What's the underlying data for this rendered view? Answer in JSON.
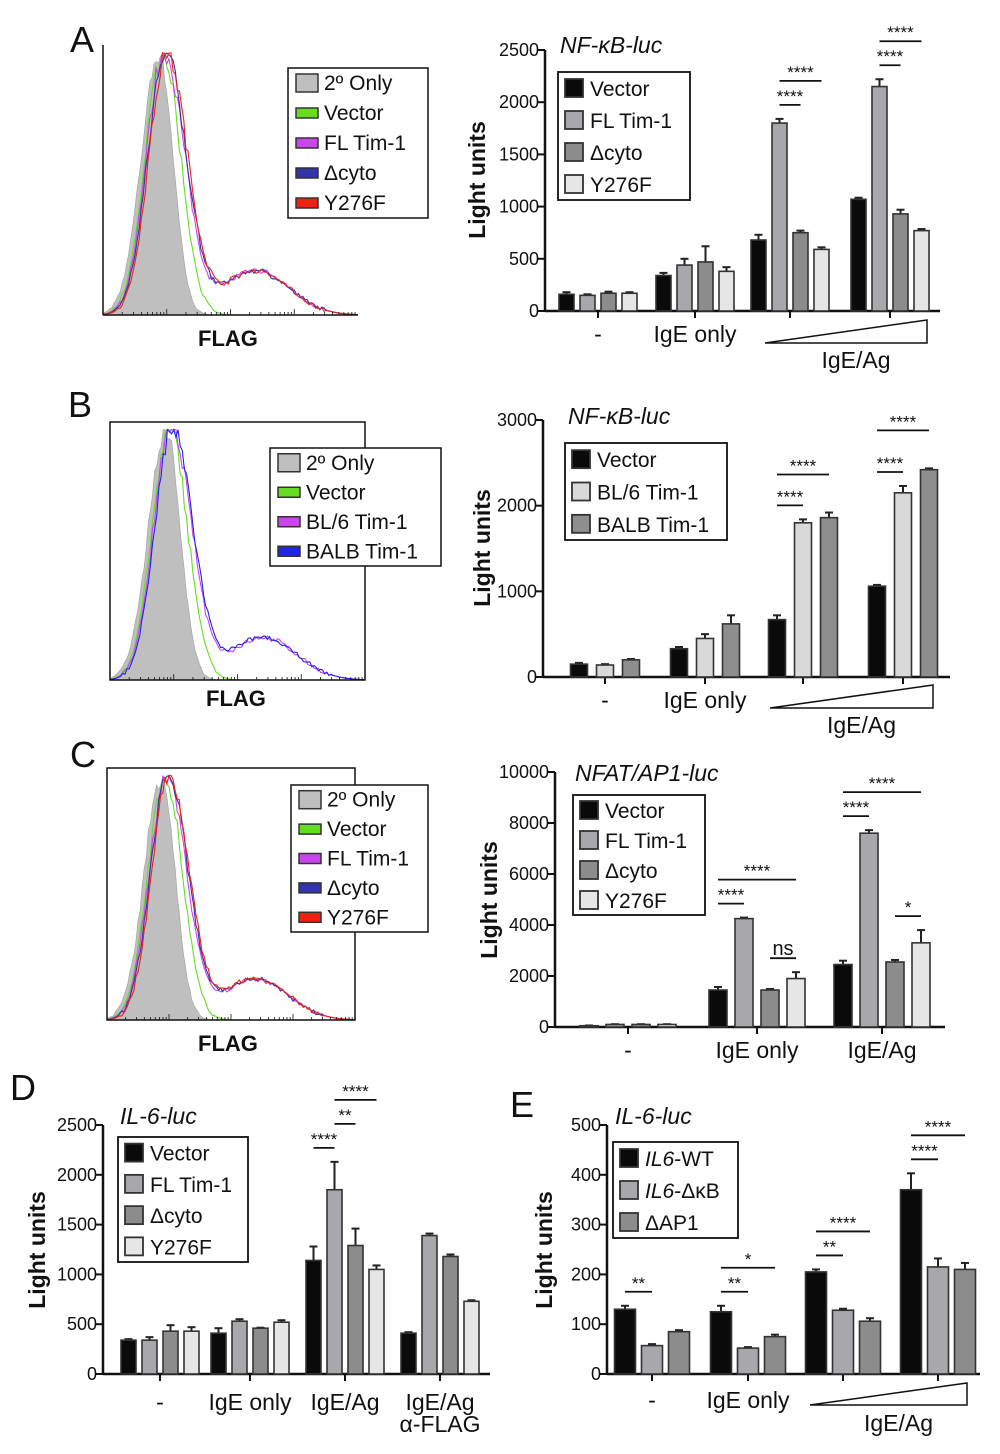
{
  "panels": [
    "A",
    "B",
    "C",
    "D",
    "E"
  ],
  "chart_data": [
    {
      "id": "A-hist",
      "type": "histogram",
      "xlabel": "FLAG",
      "x_scale": "log",
      "legend": [
        {
          "name": "2º Only",
          "color": "#bfbfbf"
        },
        {
          "name": "Vector",
          "color": "#66dd22"
        },
        {
          "name": "FL Tim-1",
          "color": "#cc44ee"
        },
        {
          "name": "Δcyto",
          "color": "#3333aa"
        },
        {
          "name": "Y276F",
          "color": "#ee2211"
        }
      ]
    },
    {
      "id": "A-bar",
      "type": "bar",
      "title": "NF-κB-luc",
      "ylabel": "Light units",
      "ylim": [
        0,
        2500
      ],
      "yticks": [
        0,
        500,
        1000,
        1500,
        2000,
        2500
      ],
      "categories": [
        "-",
        "IgE only",
        "",
        ""
      ],
      "ramp_label": "IgE/Ag",
      "ramp_groups": [
        2,
        3
      ],
      "series": [
        {
          "name": "Vector",
          "color": "#0a0a0a",
          "values": [
            160,
            340,
            680,
            1070
          ],
          "errors": [
            20,
            25,
            50,
            15
          ]
        },
        {
          "name": "FL Tim-1",
          "color": "#a8a8ac",
          "values": [
            150,
            440,
            1800,
            2150
          ],
          "errors": [
            10,
            60,
            40,
            70
          ]
        },
        {
          "name": "Δcyto",
          "color": "#8c8c8c",
          "values": [
            170,
            470,
            750,
            930
          ],
          "errors": [
            15,
            150,
            20,
            40
          ]
        },
        {
          "name": "Y276F",
          "color": "#e6e6e6",
          "values": [
            170,
            380,
            590,
            770
          ],
          "errors": [
            10,
            40,
            20,
            15
          ]
        }
      ],
      "significance": [
        {
          "group": 2,
          "from": 1,
          "to": 2,
          "label": "****",
          "level": 0
        },
        {
          "group": 2,
          "from": 1,
          "to": 3,
          "label": "****",
          "level": 1
        },
        {
          "group": 3,
          "from": 1,
          "to": 2,
          "label": "****",
          "level": 0
        },
        {
          "group": 3,
          "from": 1,
          "to": 3,
          "label": "****",
          "level": 1
        }
      ]
    },
    {
      "id": "B-hist",
      "type": "histogram",
      "xlabel": "FLAG",
      "x_scale": "log",
      "legend": [
        {
          "name": "2º Only",
          "color": "#bfbfbf"
        },
        {
          "name": "Vector",
          "color": "#66dd22"
        },
        {
          "name": "BL/6 Tim-1",
          "color": "#cc44ee"
        },
        {
          "name": "BALB Tim-1",
          "color": "#2222ee"
        }
      ]
    },
    {
      "id": "B-bar",
      "type": "bar",
      "title": "NF-κB-luc",
      "ylabel": "Light units",
      "ylim": [
        0,
        3000
      ],
      "yticks": [
        0,
        1000,
        2000,
        3000
      ],
      "categories": [
        "-",
        "IgE only",
        "",
        ""
      ],
      "ramp_label": "IgE/Ag",
      "ramp_groups": [
        2,
        3
      ],
      "series": [
        {
          "name": "Vector",
          "color": "#0a0a0a",
          "values": [
            150,
            330,
            670,
            1060
          ],
          "errors": [
            15,
            20,
            50,
            15
          ]
        },
        {
          "name": "BL/6 Tim-1",
          "color": "#d9d9d9",
          "values": [
            140,
            450,
            1800,
            2150
          ],
          "errors": [
            10,
            50,
            40,
            80
          ]
        },
        {
          "name": "BALB Tim-1",
          "color": "#8e8e8e",
          "values": [
            200,
            620,
            1860,
            2420
          ],
          "errors": [
            10,
            100,
            60,
            15
          ]
        }
      ],
      "significance": [
        {
          "group": 2,
          "from": 0,
          "to": 1,
          "label": "****",
          "level": 0
        },
        {
          "group": 2,
          "from": 0,
          "to": 2,
          "label": "****",
          "level": 1
        },
        {
          "group": 3,
          "from": 0,
          "to": 1,
          "label": "****",
          "level": 0
        },
        {
          "group": 3,
          "from": 0,
          "to": 2,
          "label": "****",
          "level": 1
        }
      ]
    },
    {
      "id": "C-hist",
      "type": "histogram",
      "xlabel": "FLAG",
      "x_scale": "log",
      "legend": [
        {
          "name": "2º Only",
          "color": "#bfbfbf"
        },
        {
          "name": "Vector",
          "color": "#66dd22"
        },
        {
          "name": "FL Tim-1",
          "color": "#cc44ee"
        },
        {
          "name": "Δcyto",
          "color": "#3333aa"
        },
        {
          "name": "Y276F",
          "color": "#ee2211"
        }
      ]
    },
    {
      "id": "C-bar",
      "type": "bar",
      "title": "NFAT/AP1-luc",
      "ylabel": "Light units",
      "ylim": [
        0,
        10000
      ],
      "yticks": [
        0,
        2000,
        4000,
        6000,
        8000,
        10000
      ],
      "categories": [
        "-",
        "IgE only",
        "IgE/Ag"
      ],
      "series": [
        {
          "name": "Vector",
          "color": "#0a0a0a",
          "values": [
            50,
            1450,
            2450
          ],
          "errors": [
            10,
            120,
            150
          ]
        },
        {
          "name": "FL Tim-1",
          "color": "#a8a8ac",
          "values": [
            100,
            4250,
            7600
          ],
          "errors": [
            10,
            40,
            120
          ]
        },
        {
          "name": "Δcyto",
          "color": "#8c8c8c",
          "values": [
            100,
            1450,
            2550
          ],
          "errors": [
            10,
            40,
            80
          ]
        },
        {
          "name": "Y276F",
          "color": "#e6e6e6",
          "values": [
            100,
            1900,
            3300
          ],
          "errors": [
            10,
            250,
            500
          ]
        }
      ],
      "significance": [
        {
          "group": 1,
          "from": 0,
          "to": 1,
          "label": "****",
          "level": 0
        },
        {
          "group": 1,
          "from": 0,
          "to": 3,
          "label": "****",
          "level": 1
        },
        {
          "group": 1,
          "from": 2,
          "to": 3,
          "label": "ns",
          "level": 0
        },
        {
          "group": 2,
          "from": 0,
          "to": 1,
          "label": "****",
          "level": 0
        },
        {
          "group": 2,
          "from": 0,
          "to": 3,
          "label": "****",
          "level": 1
        },
        {
          "group": 2,
          "from": 2,
          "to": 3,
          "label": "*",
          "level": 0
        }
      ]
    },
    {
      "id": "D-bar",
      "type": "bar",
      "title": "IL-6-luc",
      "ylabel": "Light units",
      "ylim": [
        0,
        2500
      ],
      "yticks": [
        0,
        500,
        1000,
        1500,
        2000,
        2500
      ],
      "categories": [
        "-",
        "IgE only",
        "IgE/Ag",
        "IgE/Ag|α-FLAG"
      ],
      "series": [
        {
          "name": "Vector",
          "color": "#0a0a0a",
          "values": [
            340,
            410,
            1140,
            410
          ],
          "errors": [
            10,
            50,
            140,
            10
          ]
        },
        {
          "name": "FL Tim-1",
          "color": "#a8a8ac",
          "values": [
            340,
            530,
            1850,
            1390
          ],
          "errors": [
            30,
            20,
            280,
            20
          ]
        },
        {
          "name": "Δcyto",
          "color": "#8c8c8c",
          "values": [
            430,
            460,
            1290,
            1180
          ],
          "errors": [
            60,
            5,
            170,
            20
          ]
        },
        {
          "name": "Y276F",
          "color": "#e6e6e6",
          "values": [
            430,
            520,
            1050,
            730
          ],
          "errors": [
            40,
            20,
            40,
            10
          ]
        }
      ],
      "significance": [
        {
          "group": 2,
          "from": 0,
          "to": 1,
          "label": "****",
          "level": 0
        },
        {
          "group": 2,
          "from": 1,
          "to": 2,
          "label": "**",
          "level": 1
        },
        {
          "group": 2,
          "from": 1,
          "to": 3,
          "label": "****",
          "level": 2
        }
      ]
    },
    {
      "id": "E-bar",
      "type": "bar",
      "title": "IL-6-luc",
      "ylabel": "Light units",
      "ylim": [
        0,
        500
      ],
      "yticks": [
        0,
        100,
        200,
        300,
        400,
        500
      ],
      "categories": [
        "-",
        "IgE only",
        "",
        ""
      ],
      "ramp_label": "IgE/Ag",
      "ramp_groups": [
        2,
        3
      ],
      "series": [
        {
          "name": "IL6-WT",
          "italic_prefix": "IL6",
          "color": "#0a0a0a",
          "values": [
            130,
            125,
            205,
            370
          ],
          "errors": [
            7,
            12,
            5,
            33
          ]
        },
        {
          "name": "IL6-ΔκB",
          "italic_prefix": "IL6",
          "color": "#a8a8ac",
          "values": [
            57,
            52,
            128,
            215
          ],
          "errors": [
            3,
            2,
            3,
            17
          ]
        },
        {
          "name": "ΔAP1",
          "color": "#8c8c8c",
          "values": [
            85,
            75,
            106,
            210
          ],
          "errors": [
            3,
            4,
            6,
            13
          ]
        }
      ],
      "significance": [
        {
          "group": 0,
          "from": 0,
          "to": 1,
          "label": "**",
          "level": 0
        },
        {
          "group": 1,
          "from": 0,
          "to": 1,
          "label": "**",
          "level": 0
        },
        {
          "group": 1,
          "from": 0,
          "to": 2,
          "label": "*",
          "level": 1
        },
        {
          "group": 2,
          "from": 0,
          "to": 1,
          "label": "**",
          "level": 0
        },
        {
          "group": 2,
          "from": 0,
          "to": 2,
          "label": "****",
          "level": 1
        },
        {
          "group": 3,
          "from": 0,
          "to": 1,
          "label": "****",
          "level": 0
        },
        {
          "group": 3,
          "from": 0,
          "to": 2,
          "label": "****",
          "level": 1
        }
      ]
    }
  ]
}
